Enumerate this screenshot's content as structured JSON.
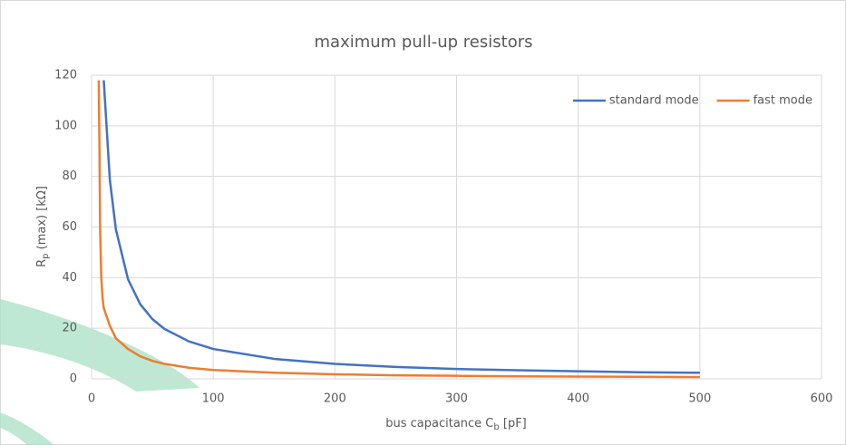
{
  "chart_data": {
    "type": "line",
    "title": "maximum pull-up resistors",
    "x_label": [
      "bus capacitance C",
      "b",
      " [pF]"
    ],
    "y_label": [
      "R",
      "p",
      " (max) [kΩ]"
    ],
    "xlim": [
      0,
      600
    ],
    "xticks": [
      0,
      100,
      200,
      300,
      400,
      500,
      600
    ],
    "ylim": [
      0,
      120
    ],
    "yticks": [
      0,
      20,
      40,
      60,
      80,
      100,
      120
    ],
    "grid": true,
    "legend": "top-right",
    "series": [
      {
        "name": "standard mode",
        "color": "#4472c4",
        "x": [
          10,
          15,
          20,
          30,
          40,
          50,
          60,
          80,
          100,
          150,
          200,
          250,
          300,
          350,
          400,
          450,
          500
        ],
        "values": [
          118,
          78.7,
          59,
          39.3,
          29.5,
          23.6,
          19.7,
          14.8,
          11.8,
          7.9,
          5.9,
          4.7,
          3.9,
          3.4,
          3.0,
          2.6,
          2.4
        ]
      },
      {
        "name": "fast mode",
        "color": "#ed7d31",
        "x": [
          5.9,
          6.5,
          7,
          8,
          9,
          10,
          15,
          20,
          30,
          40,
          50,
          60,
          80,
          100,
          150,
          200,
          250,
          300,
          350,
          400,
          450,
          500
        ],
        "values": [
          118,
          90,
          60,
          40,
          32,
          28,
          21,
          16,
          11.8,
          8.9,
          7.1,
          5.9,
          4.4,
          3.5,
          2.4,
          1.8,
          1.4,
          1.2,
          1.0,
          0.9,
          0.8,
          0.7
        ]
      }
    ]
  }
}
